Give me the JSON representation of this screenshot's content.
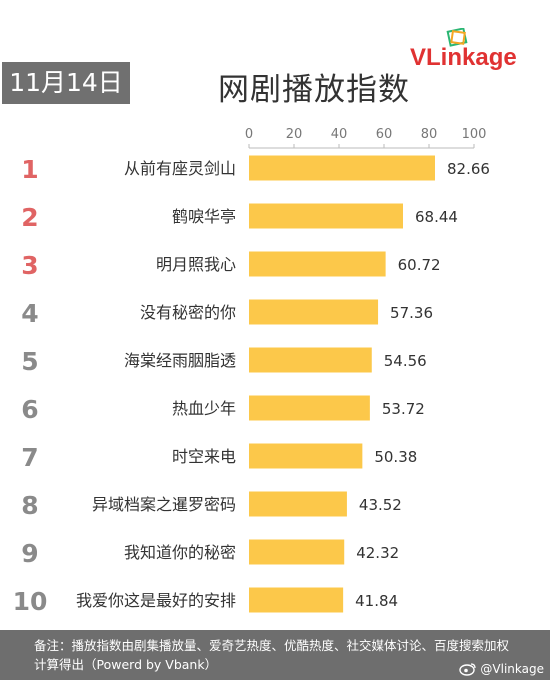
{
  "header": {
    "date": "11月14日",
    "title": "网剧播放指数",
    "logo": {
      "v": "V",
      "rest": "Linkage",
      "icon": "vlinkage-logo-icon"
    }
  },
  "chart_data": {
    "type": "bar",
    "orientation": "horizontal",
    "title": "网剧播放指数",
    "categories": [
      "从前有座灵剑山",
      "鹤唳华亭",
      "明月照我心",
      "没有秘密的你",
      "海棠经雨胭脂透",
      "热血少年",
      "时空来电",
      "异域档案之暹罗密码",
      "我知道你的秘密",
      "我爱你这是最好的安排"
    ],
    "ranks": [
      "1",
      "2",
      "3",
      "4",
      "5",
      "6",
      "7",
      "8",
      "9",
      "10"
    ],
    "values": [
      82.66,
      68.44,
      60.72,
      57.36,
      54.56,
      53.72,
      50.38,
      43.52,
      42.32,
      41.84
    ],
    "value_labels": [
      "82.66",
      "68.44",
      "60.72",
      "57.36",
      "54.56",
      "53.72",
      "50.38",
      "43.52",
      "42.32",
      "41.84"
    ],
    "xlim": [
      0,
      100
    ],
    "x_ticks": [
      "0",
      "20",
      "40",
      "60",
      "80",
      "100"
    ],
    "axis_position": "top",
    "grid": false,
    "colors": {
      "bar": "#fcc84a",
      "rank_top3": "#e06464",
      "rank_other": "#8a8a8a"
    }
  },
  "footer": {
    "note": "备注：播放指数由剧集播放量、爱奇艺热度、优酷热度、社交媒体讨论、百度搜索加权计算得出（Powerd by Vbank）",
    "weibo_handle": "@Vlinkage",
    "weibo_icon": "weibo-icon"
  }
}
